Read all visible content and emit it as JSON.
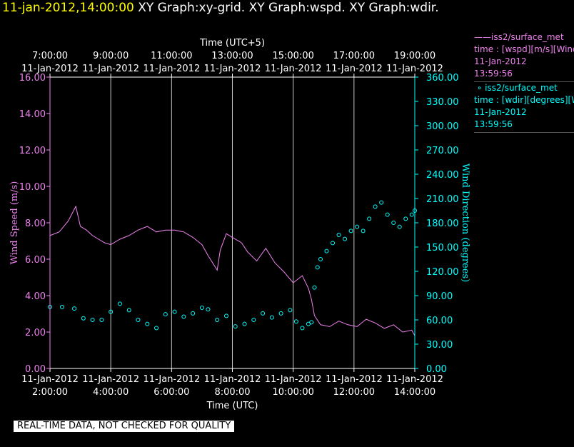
{
  "header": {
    "timestamp": "11-jan-2012,14:00:00",
    "graph_titles": "XY Graph:xy-grid.  XY Graph:wspd.  XY Graph:wdir."
  },
  "legend": {
    "wspd": {
      "marker": "——",
      "name": "iss2/surface_met",
      "desc": "time : [wspd][m/s][Wind",
      "date": "11-Jan-2012",
      "time": "13:59:56",
      "color": "#ee82ee"
    },
    "wdir": {
      "marker": "∘",
      "name": "iss2/surface_met",
      "desc": "time : [wdir][degrees][W",
      "date": "11-Jan-2012",
      "time": "13:59:56",
      "color": "#00ffff"
    }
  },
  "footer": "REAL-TIME DATA, NOT CHECKED FOR QUALITY",
  "chart_data": {
    "type": "line",
    "top_axis_label": "Time (UTC+5)",
    "bottom_axis_label": "Time (UTC)",
    "y_left_label": "Wind Speed (m/s)",
    "y_right_label": "Wind Direction (degrees)",
    "grid": true,
    "x_ticks": [
      {
        "hour": 2,
        "bottom_date": "11-Jan-2012",
        "bottom_time": "2:00:00",
        "top_date": "11-Jan-2012",
        "top_time": "7:00:00"
      },
      {
        "hour": 4,
        "bottom_date": "11-Jan-2012",
        "bottom_time": "4:00:00",
        "top_date": "11-Jan-2012",
        "top_time": "9:00:00"
      },
      {
        "hour": 6,
        "bottom_date": "11-Jan-2012",
        "bottom_time": "6:00:00",
        "top_date": "11-Jan-2012",
        "top_time": "11:00:00"
      },
      {
        "hour": 8,
        "bottom_date": "11-Jan-2012",
        "bottom_time": "8:00:00",
        "top_date": "11-Jan-2012",
        "top_time": "13:00:00"
      },
      {
        "hour": 10,
        "bottom_date": "11-Jan-2012",
        "bottom_time": "10:00:00",
        "top_date": "11-Jan-2012",
        "top_time": "15:00:00"
      },
      {
        "hour": 12,
        "bottom_date": "11-Jan-2012",
        "bottom_time": "12:00:00",
        "top_date": "11-Jan-2012",
        "top_time": "17:00:00"
      },
      {
        "hour": 14,
        "bottom_date": "11-Jan-2012",
        "bottom_time": "14:00:00",
        "top_date": "11-Jan-2012",
        "top_time": "19:00:00"
      }
    ],
    "xlim": [
      2,
      14
    ],
    "y_left": {
      "ticks": [
        "0.00",
        "2.00",
        "4.00",
        "6.00",
        "8.00",
        "10.00",
        "12.00",
        "14.00",
        "16.00"
      ],
      "lim": [
        0,
        16
      ]
    },
    "y_right": {
      "ticks": [
        "0.00",
        "30.00",
        "60.00",
        "90.00",
        "120.00",
        "150.00",
        "180.00",
        "210.00",
        "240.00",
        "270.00",
        "300.00",
        "330.00",
        "360.00"
      ],
      "lim": [
        0,
        360
      ]
    },
    "series": [
      {
        "name": "iss2/surface_met time : [wspd][m/s]",
        "axis": "left",
        "style": "line",
        "color": "#ee82ee",
        "x": [
          2.0,
          2.3,
          2.6,
          2.85,
          3.0,
          3.2,
          3.4,
          3.6,
          3.8,
          4.0,
          4.3,
          4.6,
          4.9,
          5.2,
          5.5,
          5.8,
          6.1,
          6.4,
          6.7,
          7.0,
          7.2,
          7.5,
          7.6,
          7.8,
          8.0,
          8.3,
          8.5,
          8.8,
          9.1,
          9.4,
          9.7,
          10.0,
          10.3,
          10.5,
          10.6,
          10.7,
          10.9,
          11.2,
          11.5,
          11.8,
          12.1,
          12.4,
          12.7,
          13.0,
          13.3,
          13.6,
          13.9,
          14.0
        ],
        "y": [
          7.3,
          7.5,
          8.1,
          8.9,
          7.8,
          7.6,
          7.3,
          7.1,
          6.9,
          6.8,
          7.1,
          7.3,
          7.6,
          7.8,
          7.5,
          7.6,
          7.6,
          7.5,
          7.2,
          6.8,
          6.2,
          5.4,
          6.5,
          7.4,
          7.2,
          6.9,
          6.4,
          5.9,
          6.6,
          5.8,
          5.3,
          4.7,
          5.1,
          4.4,
          3.8,
          2.9,
          2.4,
          2.3,
          2.6,
          2.4,
          2.3,
          2.7,
          2.5,
          2.2,
          2.4,
          2.0,
          2.1,
          1.8
        ]
      },
      {
        "name": "iss2/surface_met time : [wdir][degrees]",
        "axis": "right",
        "style": "markers",
        "color": "#00ffff",
        "x": [
          2.0,
          2.4,
          2.8,
          3.1,
          3.4,
          3.7,
          4.0,
          4.3,
          4.6,
          4.9,
          5.2,
          5.5,
          5.8,
          6.1,
          6.4,
          6.7,
          7.0,
          7.2,
          7.5,
          7.8,
          8.1,
          8.4,
          8.7,
          9.0,
          9.3,
          9.6,
          9.9,
          10.1,
          10.3,
          10.5,
          10.6,
          10.7,
          10.8,
          10.9,
          11.1,
          11.3,
          11.5,
          11.7,
          11.9,
          12.1,
          12.3,
          12.5,
          12.7,
          12.9,
          13.1,
          13.3,
          13.5,
          13.7,
          13.9,
          14.0
        ],
        "y": [
          76,
          76,
          74,
          62,
          60,
          60,
          70,
          80,
          72,
          60,
          55,
          50,
          67,
          70,
          64,
          68,
          75,
          73,
          60,
          65,
          52,
          55,
          60,
          68,
          63,
          68,
          72,
          58,
          50,
          55,
          57,
          100,
          125,
          135,
          145,
          155,
          165,
          160,
          170,
          175,
          170,
          185,
          200,
          205,
          190,
          180,
          175,
          185,
          190,
          195
        ]
      }
    ]
  }
}
